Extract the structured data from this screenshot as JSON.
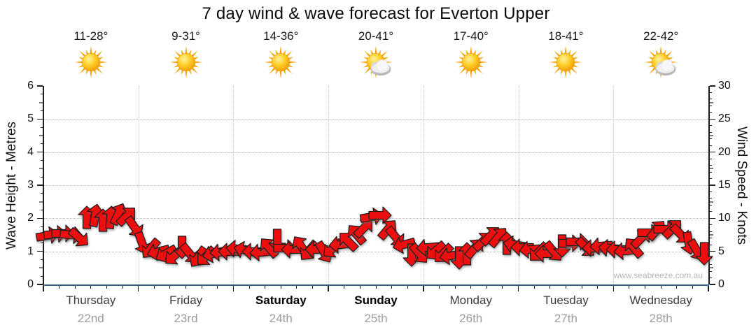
{
  "watermark": "www.seabreeze.com.au",
  "colors": {
    "arrow_red": "#ED0F0F",
    "arrow_outline": "#1b1b1b",
    "axis_text": "#111118",
    "x_axis_line": "#2e6186",
    "gridline": "#b9b9b9",
    "sun_core": "#F9A800",
    "cloud_gray": "#d9d9d9"
  },
  "chart_data": {
    "type": "wind-arrow-forecast",
    "title": "7 day wind & wave forecast for Everton Upper",
    "y_left": {
      "label": "Wave Height - Metres",
      "min": 0,
      "max": 6,
      "ticks": [
        0,
        1,
        2,
        3,
        4,
        5,
        6
      ]
    },
    "y_right": {
      "label": "Wind Speed - Knots",
      "min": 0,
      "max": 30,
      "ticks": [
        0,
        5,
        10,
        15,
        20,
        25,
        30
      ]
    },
    "grid": {
      "horizontal_dotted_at_metres": [
        1,
        2,
        3,
        4,
        5
      ],
      "vertical_dotted_at_day_boundaries": true
    },
    "days": [
      {
        "name": "Thursday",
        "date": "22nd",
        "temp": "11-28°",
        "icon": "sun",
        "bold": false
      },
      {
        "name": "Friday",
        "date": "23rd",
        "temp": "9-31°",
        "icon": "sun",
        "bold": false
      },
      {
        "name": "Saturday",
        "date": "24th",
        "temp": "14-36°",
        "icon": "sun",
        "bold": true
      },
      {
        "name": "Sunday",
        "date": "25th",
        "temp": "20-41°",
        "icon": "sun-cloud",
        "bold": true
      },
      {
        "name": "Monday",
        "date": "26th",
        "temp": "17-40°",
        "icon": "sun",
        "bold": false
      },
      {
        "name": "Tuesday",
        "date": "27th",
        "temp": "18-41°",
        "icon": "sun",
        "bold": false
      },
      {
        "name": "Wednesday",
        "date": "28th",
        "temp": "22-42°",
        "icon": "sun-cloud",
        "bold": false
      }
    ],
    "wind_series_note": "t = hours from Thursday 00:00 (2-hourly); knots on right axis (wave metres = knots/5); dir = on-screen bearing the arrow points, 0=up, 90=right, 180=down, 270=left",
    "wind": [
      {
        "t": 1,
        "knots": 7.4,
        "dir": 80
      },
      {
        "t": 3,
        "knots": 7.6,
        "dir": 85
      },
      {
        "t": 5,
        "knots": 7.7,
        "dir": 90
      },
      {
        "t": 7,
        "knots": 7.5,
        "dir": 95
      },
      {
        "t": 9,
        "knots": 7.1,
        "dir": 130
      },
      {
        "t": 11,
        "knots": 10.1,
        "dir": 0
      },
      {
        "t": 13,
        "knots": 10.5,
        "dir": 10
      },
      {
        "t": 15,
        "knots": 9.7,
        "dir": 0
      },
      {
        "t": 17,
        "knots": 10.1,
        "dir": 5
      },
      {
        "t": 19,
        "knots": 10.7,
        "dir": 25
      },
      {
        "t": 21,
        "knots": 10.3,
        "dir": 45
      },
      {
        "t": 23,
        "knots": 8.7,
        "dir": 145
      },
      {
        "t": 25,
        "knots": 6.2,
        "dir": 160
      },
      {
        "t": 27,
        "knots": 5.4,
        "dir": 220
      },
      {
        "t": 29,
        "knots": 5.0,
        "dir": 255
      },
      {
        "t": 31,
        "knots": 4.6,
        "dir": 240
      },
      {
        "t": 33,
        "knots": 4.3,
        "dir": 230
      },
      {
        "t": 35,
        "knots": 5.6,
        "dir": 180
      },
      {
        "t": 37,
        "knots": 4.6,
        "dir": 140
      },
      {
        "t": 39,
        "knots": 4.1,
        "dir": 215
      },
      {
        "t": 41,
        "knots": 4.2,
        "dir": 225
      },
      {
        "t": 43,
        "knots": 4.6,
        "dir": 255
      },
      {
        "t": 45,
        "knots": 4.9,
        "dir": 265
      },
      {
        "t": 47,
        "knots": 5.0,
        "dir": 270
      },
      {
        "t": 49,
        "knots": 5.4,
        "dir": 275
      },
      {
        "t": 51,
        "knots": 5.2,
        "dir": 285
      },
      {
        "t": 53,
        "knots": 5.0,
        "dir": 270
      },
      {
        "t": 55,
        "knots": 4.9,
        "dir": 265
      },
      {
        "t": 57,
        "knots": 5.6,
        "dir": 320
      },
      {
        "t": 59,
        "knots": 6.7,
        "dir": 180
      },
      {
        "t": 61,
        "knots": 5.5,
        "dir": 90
      },
      {
        "t": 63,
        "knots": 5.3,
        "dir": 270
      },
      {
        "t": 65,
        "knots": 5.8,
        "dir": 325
      },
      {
        "t": 67,
        "knots": 5.1,
        "dir": 220
      },
      {
        "t": 69,
        "knots": 5.3,
        "dir": 270
      },
      {
        "t": 71,
        "knots": 4.9,
        "dir": 150
      },
      {
        "t": 73,
        "knots": 5.4,
        "dir": 230
      },
      {
        "t": 75,
        "knots": 6.0,
        "dir": 265
      },
      {
        "t": 77,
        "knots": 6.6,
        "dir": 315
      },
      {
        "t": 79,
        "knots": 7.6,
        "dir": 320
      },
      {
        "t": 81,
        "knots": 8.6,
        "dir": 45
      },
      {
        "t": 83,
        "knots": 10.2,
        "dir": 80
      },
      {
        "t": 85,
        "knots": 10.5,
        "dir": 90
      },
      {
        "t": 87,
        "knots": 8.3,
        "dir": 40
      },
      {
        "t": 89,
        "knots": 7.2,
        "dir": 140
      },
      {
        "t": 91,
        "knots": 6.0,
        "dir": 255
      },
      {
        "t": 93,
        "knots": 4.4,
        "dir": 180
      },
      {
        "t": 95,
        "knots": 4.6,
        "dir": 140
      },
      {
        "t": 97,
        "knots": 5.6,
        "dir": 265
      },
      {
        "t": 99,
        "knots": 5.1,
        "dir": 230
      },
      {
        "t": 101,
        "knots": 4.6,
        "dir": 225
      },
      {
        "t": 103,
        "knots": 4.3,
        "dir": 260
      },
      {
        "t": 105,
        "knots": 4.0,
        "dir": 180
      },
      {
        "t": 107,
        "knots": 4.6,
        "dir": 0
      },
      {
        "t": 109,
        "knots": 5.5,
        "dir": 40
      },
      {
        "t": 111,
        "knots": 6.6,
        "dir": 45
      },
      {
        "t": 113,
        "knots": 7.4,
        "dir": 45
      },
      {
        "t": 115,
        "knots": 7.2,
        "dir": 40
      },
      {
        "t": 117,
        "knots": 6.2,
        "dir": 0
      },
      {
        "t": 119,
        "knots": 6.0,
        "dir": 280
      },
      {
        "t": 121,
        "knots": 5.6,
        "dir": 270
      },
      {
        "t": 123,
        "knots": 5.3,
        "dir": 265
      },
      {
        "t": 125,
        "knots": 4.9,
        "dir": 225
      },
      {
        "t": 127,
        "knots": 4.6,
        "dir": 270
      },
      {
        "t": 129,
        "knots": 5.0,
        "dir": 140
      },
      {
        "t": 131,
        "knots": 5.8,
        "dir": 180
      },
      {
        "t": 133,
        "knots": 6.2,
        "dir": 90
      },
      {
        "t": 135,
        "knots": 6.4,
        "dir": 90
      },
      {
        "t": 137,
        "knots": 5.6,
        "dir": 135
      },
      {
        "t": 139,
        "knots": 5.5,
        "dir": 270
      },
      {
        "t": 141,
        "knots": 5.8,
        "dir": 265
      },
      {
        "t": 143,
        "knots": 5.5,
        "dir": 275
      },
      {
        "t": 145,
        "knots": 5.3,
        "dir": 270
      },
      {
        "t": 147,
        "knots": 5.1,
        "dir": 265
      },
      {
        "t": 149,
        "knots": 5.6,
        "dir": 320
      },
      {
        "t": 151,
        "knots": 7.0,
        "dir": 45
      },
      {
        "t": 153,
        "knots": 7.8,
        "dir": 90
      },
      {
        "t": 155,
        "knots": 8.2,
        "dir": 40
      },
      {
        "t": 157,
        "knots": 8.3,
        "dir": 90
      },
      {
        "t": 159,
        "knots": 8.5,
        "dir": 45
      },
      {
        "t": 161,
        "knots": 7.6,
        "dir": 135
      },
      {
        "t": 163,
        "knots": 6.2,
        "dir": 170
      },
      {
        "t": 165,
        "knots": 5.2,
        "dir": 150
      },
      {
        "t": 167,
        "knots": 4.6,
        "dir": 180
      }
    ]
  }
}
